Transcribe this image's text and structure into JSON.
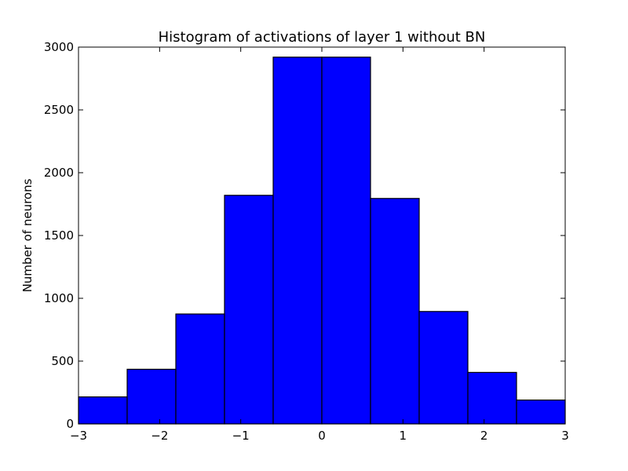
{
  "chart_data": {
    "type": "bar",
    "title": "Histogram of activations of layer 1  without BN",
    "xlabel": "",
    "ylabel": "Number of neurons",
    "xlim": [
      -3,
      3
    ],
    "ylim": [
      0,
      3000
    ],
    "bin_edges": [
      -3,
      -2.4,
      -1.8,
      -1.2,
      -0.6,
      0,
      0.6,
      1.2,
      1.8,
      2.4,
      3
    ],
    "values": [
      215,
      435,
      875,
      1820,
      2920,
      2920,
      1795,
      895,
      410,
      190
    ],
    "x_ticks": [
      -3,
      -2,
      -1,
      0,
      1,
      2,
      3
    ],
    "x_tick_labels": [
      "−3",
      "−2",
      "−1",
      "0",
      "1",
      "2",
      "3"
    ],
    "y_ticks": [
      0,
      500,
      1000,
      1500,
      2000,
      2500,
      3000
    ],
    "y_tick_labels": [
      "0",
      "500",
      "1000",
      "1500",
      "2000",
      "2500",
      "3000"
    ],
    "bar_color": "#0000ff",
    "edge_color": "#000000",
    "grid": false
  }
}
